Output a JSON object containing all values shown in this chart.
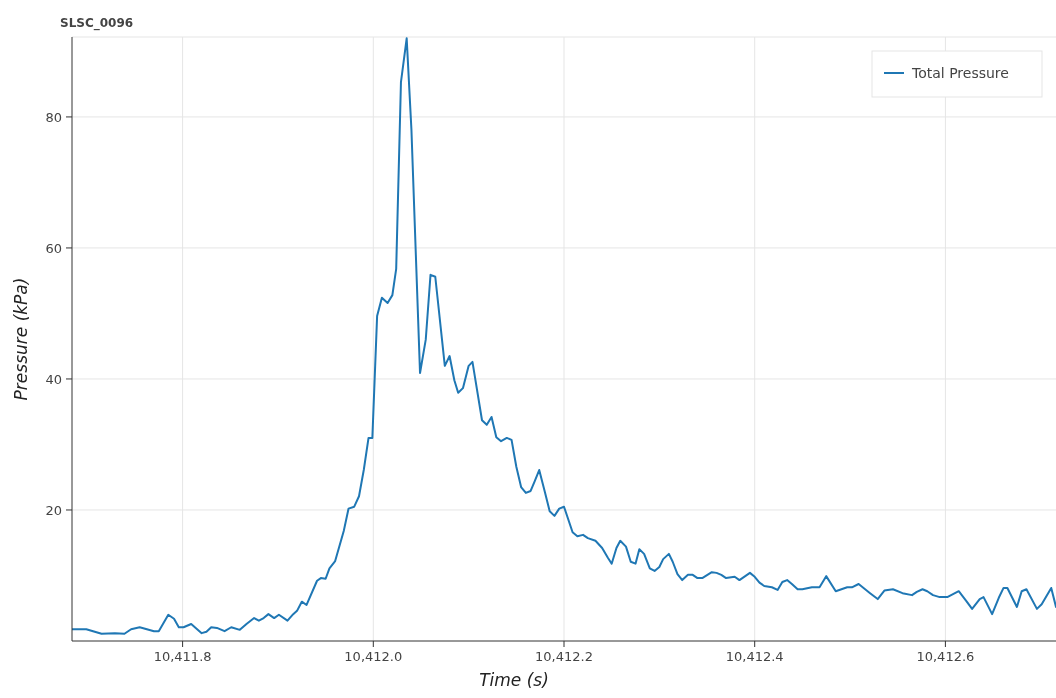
{
  "chart_data": {
    "type": "line",
    "title": "SLSC_0096",
    "xlabel": "Time (s)",
    "ylabel": "Pressure (kPa)",
    "xlim": [
      10411.684,
      10412.716
    ],
    "ylim": [
      0,
      92.2
    ],
    "xticks": [
      {
        "value": 10411.8,
        "label": "10,411.8"
      },
      {
        "value": 10412.0,
        "label": "10,412.0"
      },
      {
        "value": 10412.2,
        "label": "10,412.2"
      },
      {
        "value": 10412.4,
        "label": "10,412.4"
      },
      {
        "value": 10412.6,
        "label": "10,412.6"
      }
    ],
    "yticks": [
      20,
      40,
      60,
      80
    ],
    "grid": true,
    "legend": "top right",
    "series": [
      {
        "name": "Total Pressure",
        "color": "#1f77b4",
        "x": [
          10411.684,
          10411.699,
          10411.715,
          10411.729,
          10411.739,
          10411.746,
          10411.755,
          10411.77,
          10411.775,
          10411.785,
          10411.791,
          10411.796,
          10411.801,
          10411.809,
          10411.82,
          10411.825,
          10411.83,
          10411.836,
          10411.844,
          10411.851,
          10411.86,
          10411.867,
          10411.875,
          10411.88,
          10411.885,
          10411.89,
          10411.896,
          10411.901,
          10411.91,
          10411.916,
          10411.92,
          10411.925,
          10411.93,
          10411.941,
          10411.945,
          10411.95,
          10411.954,
          10411.96,
          10411.969,
          10411.974,
          10411.98,
          10411.985,
          10411.99,
          10411.995,
          10411.999,
          10412.004,
          10412.009,
          10412.015,
          10412.02,
          10412.024,
          10412.029,
          10412.035,
          10412.04,
          10412.049,
          10412.055,
          10412.06,
          10412.065,
          10412.075,
          10412.08,
          10412.085,
          10412.089,
          10412.094,
          10412.1,
          10412.104,
          10412.114,
          10412.119,
          10412.124,
          10412.129,
          10412.134,
          10412.14,
          10412.145,
          10412.15,
          10412.155,
          10412.16,
          10412.165,
          10412.169,
          10412.174,
          10412.18,
          10412.185,
          10412.19,
          10412.195,
          10412.2,
          10412.209,
          10412.214,
          10412.22,
          10412.225,
          10412.233,
          10412.24,
          10412.246,
          10412.25,
          10412.255,
          10412.259,
          10412.265,
          10412.27,
          10412.275,
          10412.279,
          10412.284,
          10412.29,
          10412.295,
          10412.3,
          10412.304,
          10412.31,
          10412.314,
          10412.319,
          10412.324,
          10412.33,
          10412.335,
          10412.34,
          10412.345,
          10412.355,
          10412.36,
          10412.365,
          10412.37,
          10412.379,
          10412.384,
          10412.395,
          10412.4,
          10412.405,
          10412.41,
          10412.418,
          10412.424,
          10412.429,
          10412.434,
          10412.439,
          10412.445,
          10412.45,
          10412.46,
          10412.468,
          10412.475,
          10412.485,
          10412.497,
          10412.502,
          10412.509,
          10412.521,
          10412.529,
          10412.536,
          10412.545,
          10412.555,
          10412.565,
          10412.57,
          10412.576,
          10412.581,
          10412.587,
          10412.594,
          10412.602,
          10412.614,
          10412.622,
          10412.628,
          10412.636,
          10412.64,
          10412.649,
          10412.656,
          10412.661,
          10412.665,
          10412.675,
          10412.68,
          10412.685,
          10412.696,
          10412.701,
          10412.711,
          10412.716
        ],
        "values": [
          1.8,
          1.8,
          1.1,
          1.2,
          1.1,
          1.8,
          2.1,
          1.5,
          1.5,
          4.0,
          3.4,
          2.1,
          2.1,
          2.6,
          1.2,
          1.4,
          2.1,
          2.0,
          1.5,
          2.1,
          1.7,
          2.6,
          3.5,
          3.1,
          3.5,
          4.1,
          3.5,
          4.0,
          3.1,
          4.1,
          4.6,
          6.0,
          5.5,
          9.2,
          9.6,
          9.5,
          11.1,
          12.2,
          16.8,
          20.2,
          20.5,
          22.1,
          26.1,
          31.0,
          31.0,
          49.6,
          52.4,
          51.6,
          52.8,
          56.8,
          85.3,
          92.0,
          78.0,
          40.9,
          46.0,
          55.9,
          55.6,
          42.0,
          43.5,
          39.8,
          37.9,
          38.6,
          42.0,
          42.6,
          33.7,
          33.0,
          34.2,
          31.1,
          30.5,
          31.0,
          30.7,
          26.6,
          23.5,
          22.6,
          22.9,
          24.3,
          26.1,
          22.7,
          19.8,
          19.1,
          20.2,
          20.5,
          16.6,
          16.0,
          16.2,
          15.7,
          15.3,
          14.2,
          12.7,
          11.8,
          14.2,
          15.3,
          14.4,
          12.1,
          11.8,
          14.0,
          13.3,
          11.1,
          10.7,
          11.3,
          12.5,
          13.3,
          12.1,
          10.2,
          9.3,
          10.1,
          10.1,
          9.6,
          9.6,
          10.5,
          10.4,
          10.1,
          9.6,
          9.8,
          9.3,
          10.4,
          9.8,
          8.9,
          8.4,
          8.2,
          7.8,
          9.0,
          9.3,
          8.7,
          7.9,
          7.9,
          8.2,
          8.2,
          9.9,
          7.6,
          8.2,
          8.2,
          8.7,
          7.3,
          6.4,
          7.7,
          7.9,
          7.3,
          7.0,
          7.5,
          7.9,
          7.6,
          7.0,
          6.7,
          6.7,
          7.6,
          6.1,
          4.9,
          6.4,
          6.7,
          4.1,
          6.6,
          8.1,
          8.1,
          5.2,
          7.6,
          7.9,
          4.9,
          5.6,
          8.1,
          5.2
        ]
      }
    ]
  }
}
